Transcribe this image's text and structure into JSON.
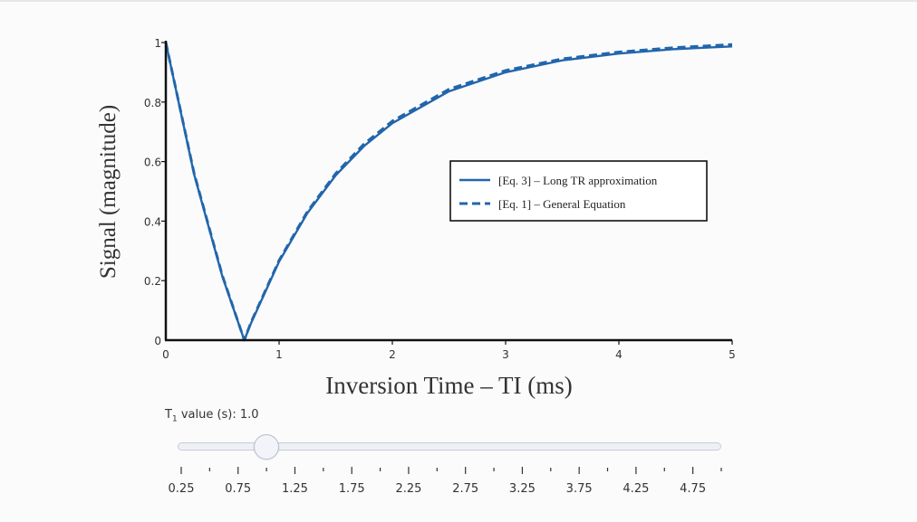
{
  "chart_data": {
    "type": "line",
    "xlabel": "Inversion Time – TI (ms)",
    "ylabel": "Signal (magnitude)",
    "xlim": [
      0,
      5
    ],
    "ylim": [
      0,
      1
    ],
    "x_ticks": [
      "0",
      "1",
      "2",
      "3",
      "4",
      "5"
    ],
    "y_ticks": [
      "0",
      "0.2",
      "0.4",
      "0.6",
      "0.8",
      "1"
    ],
    "grid": false,
    "legend_position": "middle-right",
    "colors": {
      "line": "#2166ac"
    },
    "series": [
      {
        "name": "[Eq. 3] – Long TR approximation",
        "style": "solid",
        "x": [
          0,
          0.25,
          0.5,
          0.693,
          0.75,
          1.0,
          1.25,
          1.5,
          1.75,
          2.0,
          2.5,
          3.0,
          3.5,
          4.0,
          4.5,
          5.0
        ],
        "y": [
          1.0,
          0.557,
          0.213,
          0.0,
          0.055,
          0.264,
          0.427,
          0.554,
          0.652,
          0.729,
          0.836,
          0.9,
          0.94,
          0.963,
          0.978,
          0.987
        ]
      },
      {
        "name": "[Eq. 1] – General Equation",
        "style": "dashed",
        "x": [
          0,
          0.25,
          0.5,
          0.693,
          0.75,
          1.0,
          1.25,
          1.5,
          1.75,
          2.0,
          2.5,
          3.0,
          3.5,
          4.0,
          4.5,
          5.0
        ],
        "y": [
          1.0,
          0.56,
          0.216,
          0.0,
          0.058,
          0.268,
          0.432,
          0.56,
          0.659,
          0.736,
          0.843,
          0.906,
          0.945,
          0.968,
          0.983,
          0.993
        ]
      }
    ]
  },
  "slider": {
    "label_prefix": "T",
    "label_sub": "1",
    "label_suffix": " value (s): 1.0",
    "value": 1.0,
    "min": 0.25,
    "max": 5.0,
    "step_labels": [
      "0.25",
      "0.75",
      "1.25",
      "1.75",
      "2.25",
      "2.75",
      "3.25",
      "3.75",
      "4.25",
      "4.75"
    ]
  }
}
